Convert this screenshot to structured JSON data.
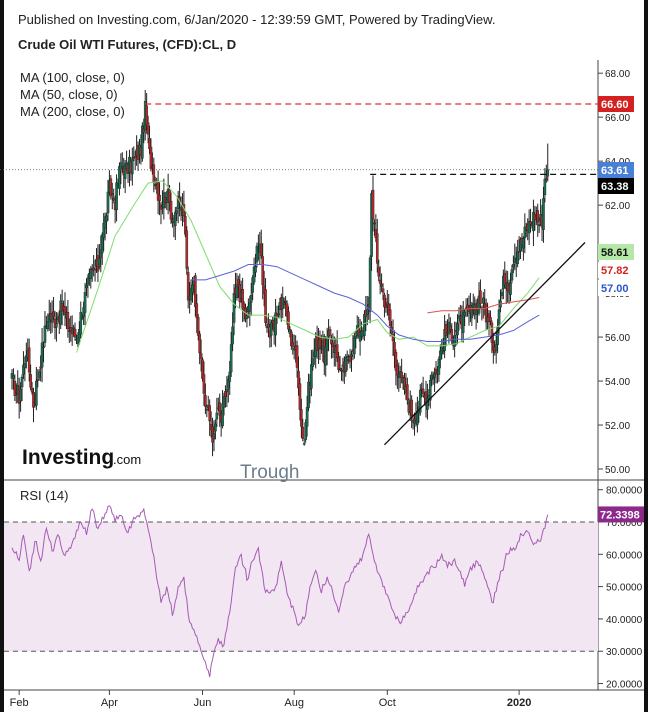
{
  "header": {
    "published": "Published on Investing.com, 6/Jan/2020 - 12:39:59 GMT, Powered by TradingView.",
    "symbol": "Crude Oil WTI Futures, (CFD):CL, D"
  },
  "legend": {
    "ma100": "MA (100, close, 0)",
    "ma50": "MA (50, close, 0)",
    "ma200": "MA (200, close, 0)"
  },
  "brand": {
    "logo": "Investing",
    "logo_suffix": ".com"
  },
  "annotation": {
    "trough": "Trough"
  },
  "rsi": {
    "label": "RSI (14)"
  },
  "colors": {
    "up": "#1a6e52",
    "down": "#b42a2a",
    "ma50": "#7fdd6e",
    "ma100": "#5b62d8",
    "ma200": "#d9534f",
    "rsi_line": "#a55bb4",
    "rsi_band": "#f3e6f3",
    "resistance": "#e03030"
  },
  "chart_data": [
    {
      "type": "candlestick",
      "title": "Crude Oil WTI Futures, (CFD):CL, D",
      "x_ticks": [
        "Feb",
        "Apr",
        "Jun",
        "Aug",
        "Oct",
        "2020"
      ],
      "y_ticks": [
        "50.00",
        "52.00",
        "54.00",
        "56.00",
        "58.00",
        "60.00",
        "62.00",
        "64.00",
        "66.00",
        "68.00"
      ],
      "ylim": [
        49.5,
        68.6
      ],
      "price_tags": [
        {
          "value": 66.6,
          "label": "66.60",
          "color": "#d42020"
        },
        {
          "value": 63.61,
          "label": "63.61",
          "color": "#4a7fd6"
        },
        {
          "value": 63.38,
          "label": "63.38",
          "color": "#000000"
        },
        {
          "value": 58.61,
          "label": "58.61",
          "color": "#ffffff"
        },
        {
          "value": 57.82,
          "label": "57.82",
          "color": "#d42020"
        },
        {
          "value": 57.0,
          "label": "57.00",
          "color": "#2a55cc"
        }
      ],
      "resistance_line": 66.6,
      "neckline": 63.4,
      "uptrend_line": {
        "x0": 260,
        "y0": 51.1,
        "x1": 400,
        "y1": 60.3
      },
      "x_index_range": [
        0,
        400
      ],
      "month_index": {
        "Feb": 5,
        "Apr": 68,
        "Jun": 133,
        "Aug": 197,
        "Oct": 262,
        "2020": 354
      },
      "close_anchors": [
        [
          0,
          54.0
        ],
        [
          5,
          53.3
        ],
        [
          10,
          55.5
        ],
        [
          15,
          53.0
        ],
        [
          20,
          55.0
        ],
        [
          25,
          57.0
        ],
        [
          30,
          56.8
        ],
        [
          35,
          57.3
        ],
        [
          40,
          56.4
        ],
        [
          45,
          56.0
        ],
        [
          50,
          57.6
        ],
        [
          55,
          58.8
        ],
        [
          60,
          59.2
        ],
        [
          63,
          60.8
        ],
        [
          65,
          61.3
        ],
        [
          68,
          62.7
        ],
        [
          72,
          62.2
        ],
        [
          76,
          63.9
        ],
        [
          80,
          63.6
        ],
        [
          85,
          64.0
        ],
        [
          90,
          64.6
        ],
        [
          93,
          66.3
        ],
        [
          96,
          64.3
        ],
        [
          100,
          63.2
        ],
        [
          104,
          62.1
        ],
        [
          108,
          62.6
        ],
        [
          112,
          61.5
        ],
        [
          116,
          62.0
        ],
        [
          120,
          61.7
        ],
        [
          123,
          57.6
        ],
        [
          126,
          58.8
        ],
        [
          129,
          57.3
        ],
        [
          132,
          54.6
        ],
        [
          135,
          53.0
        ],
        [
          138,
          52.2
        ],
        [
          141,
          51.3
        ],
        [
          143,
          52.6
        ],
        [
          146,
          52.2
        ],
        [
          149,
          53.4
        ],
        [
          152,
          54.2
        ],
        [
          155,
          57.6
        ],
        [
          158,
          58.4
        ],
        [
          161,
          57.3
        ],
        [
          164,
          56.8
        ],
        [
          168,
          58.4
        ],
        [
          171,
          60.3
        ],
        [
          174,
          59.6
        ],
        [
          177,
          57.0
        ],
        [
          180,
          56.2
        ],
        [
          183,
          56.3
        ],
        [
          186,
          57.4
        ],
        [
          190,
          57.7
        ],
        [
          194,
          56.1
        ],
        [
          197,
          55.6
        ],
        [
          200,
          54.1
        ],
        [
          202,
          52.0
        ],
        [
          204,
          51.3
        ],
        [
          206,
          53.0
        ],
        [
          210,
          55.1
        ],
        [
          214,
          56.0
        ],
        [
          218,
          55.2
        ],
        [
          222,
          56.1
        ],
        [
          226,
          55.4
        ],
        [
          230,
          54.2
        ],
        [
          234,
          54.9
        ],
        [
          238,
          55.7
        ],
        [
          242,
          56.3
        ],
        [
          246,
          56.7
        ],
        [
          249,
          57.2
        ],
        [
          251,
          62.5
        ],
        [
          253,
          61.0
        ],
        [
          255,
          59.3
        ],
        [
          258,
          58.3
        ],
        [
          262,
          57.2
        ],
        [
          265,
          56.2
        ],
        [
          268,
          54.9
        ],
        [
          271,
          54.1
        ],
        [
          274,
          53.7
        ],
        [
          277,
          53.0
        ],
        [
          280,
          52.4
        ],
        [
          283,
          52.8
        ],
        [
          286,
          53.4
        ],
        [
          290,
          53.3
        ],
        [
          293,
          54.5
        ],
        [
          296,
          54.3
        ],
        [
          300,
          55.6
        ],
        [
          304,
          56.3
        ],
        [
          308,
          56.2
        ],
        [
          312,
          56.6
        ],
        [
          315,
          56.8
        ],
        [
          318,
          57.0
        ],
        [
          322,
          57.1
        ],
        [
          326,
          57.8
        ],
        [
          330,
          57.3
        ],
        [
          334,
          56.3
        ],
        [
          337,
          55.5
        ],
        [
          340,
          57.3
        ],
        [
          344,
          58.8
        ],
        [
          347,
          58.4
        ],
        [
          350,
          59.7
        ],
        [
          353,
          60.0
        ],
        [
          356,
          60.3
        ],
        [
          359,
          60.9
        ],
        [
          362,
          61.2
        ],
        [
          365,
          61.6
        ],
        [
          368,
          61.2
        ],
        [
          370,
          61.4
        ],
        [
          372,
          63.3
        ],
        [
          374,
          63.6
        ]
      ],
      "series": [
        {
          "name": "MA (50, close, 0)",
          "points": [
            [
              45,
              55.3
            ],
            [
              60,
              58.2
            ],
            [
              72,
              60.6
            ],
            [
              85,
              62.0
            ],
            [
              95,
              63.0
            ],
            [
              105,
              63.1
            ],
            [
              115,
              62.4
            ],
            [
              125,
              61.3
            ],
            [
              135,
              59.8
            ],
            [
              145,
              58.3
            ],
            [
              155,
              57.5
            ],
            [
              165,
              57.0
            ],
            [
              175,
              57.0
            ],
            [
              185,
              56.9
            ],
            [
              195,
              56.6
            ],
            [
              205,
              56.3
            ],
            [
              215,
              56.0
            ],
            [
              225,
              55.9
            ],
            [
              235,
              56.0
            ],
            [
              245,
              56.6
            ],
            [
              255,
              56.8
            ],
            [
              262,
              56.2
            ],
            [
              270,
              55.9
            ],
            [
              280,
              56.0
            ],
            [
              290,
              55.6
            ],
            [
              300,
              55.6
            ],
            [
              310,
              55.7
            ],
            [
              320,
              56.0
            ],
            [
              330,
              56.3
            ],
            [
              340,
              56.5
            ],
            [
              350,
              57.3
            ],
            [
              360,
              58.0
            ],
            [
              368,
              58.7
            ]
          ]
        },
        {
          "name": "MA (100, close, 0)",
          "points": [
            [
              125,
              58.6
            ],
            [
              135,
              58.6
            ],
            [
              145,
              58.8
            ],
            [
              155,
              59.0
            ],
            [
              165,
              59.3
            ],
            [
              175,
              59.3
            ],
            [
              185,
              59.2
            ],
            [
              195,
              58.9
            ],
            [
              205,
              58.6
            ],
            [
              215,
              58.3
            ],
            [
              225,
              58.0
            ],
            [
              235,
              57.8
            ],
            [
              245,
              57.5
            ],
            [
              255,
              57.0
            ],
            [
              262,
              56.5
            ],
            [
              270,
              56.1
            ],
            [
              280,
              55.9
            ],
            [
              290,
              55.8
            ],
            [
              300,
              55.8
            ],
            [
              310,
              55.9
            ],
            [
              320,
              55.9
            ],
            [
              330,
              56.0
            ],
            [
              340,
              56.1
            ],
            [
              350,
              56.3
            ],
            [
              360,
              56.7
            ],
            [
              368,
              57.0
            ]
          ]
        },
        {
          "name": "MA (200, close, 0)",
          "points": [
            [
              290,
              57.1
            ],
            [
              300,
              57.2
            ],
            [
              310,
              57.2
            ],
            [
              320,
              57.3
            ],
            [
              330,
              57.3
            ],
            [
              340,
              57.5
            ],
            [
              350,
              57.6
            ],
            [
              360,
              57.7
            ],
            [
              368,
              57.8
            ]
          ]
        }
      ]
    },
    {
      "type": "line",
      "title": "RSI (14)",
      "y_ticks": [
        "20.0000",
        "30.0000",
        "40.0000",
        "50.0000",
        "60.0000",
        "70.0000",
        "80.0000"
      ],
      "ylim": [
        18,
        83
      ],
      "overbought": 70,
      "oversold": 30,
      "last_value": {
        "value": 72.3398,
        "label": "72.3398"
      },
      "series": [
        {
          "name": "RSI (14)",
          "points": [
            [
              0,
              62
            ],
            [
              5,
              58
            ],
            [
              8,
              66
            ],
            [
              12,
              55
            ],
            [
              16,
              64
            ],
            [
              20,
              58
            ],
            [
              24,
              68
            ],
            [
              28,
              61
            ],
            [
              32,
              66
            ],
            [
              36,
              60
            ],
            [
              40,
              62
            ],
            [
              44,
              65
            ],
            [
              48,
              70
            ],
            [
              52,
              66
            ],
            [
              56,
              74
            ],
            [
              60,
              68
            ],
            [
              64,
              71
            ],
            [
              68,
              75
            ],
            [
              72,
              70
            ],
            [
              76,
              72
            ],
            [
              80,
              67
            ],
            [
              84,
              70
            ],
            [
              88,
              72
            ],
            [
              92,
              74
            ],
            [
              96,
              66
            ],
            [
              100,
              56
            ],
            [
              104,
              45
            ],
            [
              108,
              50
            ],
            [
              112,
              41
            ],
            [
              116,
              50
            ],
            [
              120,
              53
            ],
            [
              124,
              39
            ],
            [
              128,
              35
            ],
            [
              132,
              30
            ],
            [
              135,
              26
            ],
            [
              138,
              22
            ],
            [
              141,
              30
            ],
            [
              144,
              34
            ],
            [
              148,
              32
            ],
            [
              152,
              42
            ],
            [
              156,
              56
            ],
            [
              160,
              60
            ],
            [
              164,
              52
            ],
            [
              168,
              58
            ],
            [
              172,
              62
            ],
            [
              176,
              50
            ],
            [
              180,
              48
            ],
            [
              184,
              50
            ],
            [
              188,
              58
            ],
            [
              192,
              48
            ],
            [
              196,
              44
            ],
            [
              200,
              38
            ],
            [
              204,
              40
            ],
            [
              208,
              50
            ],
            [
              212,
              55
            ],
            [
              216,
              48
            ],
            [
              220,
              53
            ],
            [
              224,
              48
            ],
            [
              228,
              42
            ],
            [
              232,
              50
            ],
            [
              236,
              53
            ],
            [
              240,
              56
            ],
            [
              244,
              58
            ],
            [
              249,
              67
            ],
            [
              252,
              60
            ],
            [
              256,
              54
            ],
            [
              260,
              50
            ],
            [
              264,
              45
            ],
            [
              268,
              40
            ],
            [
              272,
              39
            ],
            [
              276,
              42
            ],
            [
              280,
              46
            ],
            [
              284,
              50
            ],
            [
              288,
              53
            ],
            [
              292,
              56
            ],
            [
              296,
              56
            ],
            [
              300,
              60
            ],
            [
              304,
              56
            ],
            [
              308,
              58
            ],
            [
              312,
              55
            ],
            [
              316,
              50
            ],
            [
              320,
              56
            ],
            [
              324,
              58
            ],
            [
              328,
              55
            ],
            [
              332,
              50
            ],
            [
              336,
              45
            ],
            [
              340,
              52
            ],
            [
              344,
              58
            ],
            [
              348,
              62
            ],
            [
              352,
              62
            ],
            [
              356,
              66
            ],
            [
              360,
              67
            ],
            [
              364,
              63
            ],
            [
              368,
              64
            ],
            [
              372,
              68
            ],
            [
              374,
              72.3
            ]
          ]
        }
      ]
    }
  ]
}
